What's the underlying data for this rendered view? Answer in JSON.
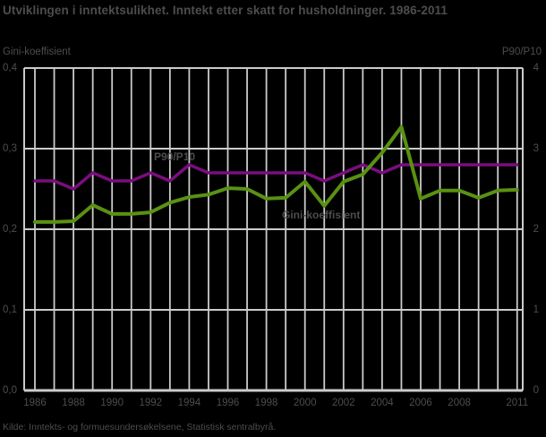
{
  "title": "Utviklingen i inntektsulikhet. Inntekt etter skatt for husholdninger. 1986-2011",
  "source": "Kilde: Inntekts- og formuesundersøkelsene, Statistisk sentralbyrå.",
  "colors": {
    "background": "#000000",
    "grid": "#cbcbcb",
    "axis_line": "#cbcbcb",
    "text": "#4d4d4d",
    "gini_line": "#5a9112",
    "p90_line": "#7b0d7e"
  },
  "left_axis": {
    "title": "Gini-koeffisient",
    "ticks": [
      "0,4",
      "0,3",
      "0,2",
      "0,1",
      "0,0"
    ]
  },
  "right_axis": {
    "title": "P90/P10",
    "ticks": [
      "4",
      "3",
      "2",
      "1",
      "0"
    ]
  },
  "series_labels": {
    "p90": "P90/P10",
    "gini": "Gini-koeffisient"
  },
  "chart_data": {
    "type": "line",
    "x": [
      1986,
      1987,
      1988,
      1989,
      1990,
      1991,
      1992,
      1993,
      1994,
      1995,
      1996,
      1997,
      1998,
      1999,
      2000,
      2001,
      2002,
      2003,
      2004,
      2005,
      2006,
      2007,
      2008,
      2009,
      2010,
      2011
    ],
    "x_tick_labels": [
      "1986",
      "1988",
      "1990",
      "1992",
      "1994",
      "1996",
      "1998",
      "2000",
      "2002",
      "2004",
      "2006",
      "2008",
      "2011"
    ],
    "series": [
      {
        "name": "P90/P10",
        "axis": "right",
        "color": "#7b0d7e",
        "values": [
          2.6,
          2.6,
          2.5,
          2.7,
          2.6,
          2.6,
          2.7,
          2.6,
          2.8,
          2.7,
          2.7,
          2.7,
          2.7,
          2.7,
          2.7,
          2.6,
          2.7,
          2.8,
          2.7,
          2.8,
          2.8,
          2.8,
          2.8,
          2.8,
          2.8,
          2.8
        ]
      },
      {
        "name": "Gini-koeffisient",
        "axis": "left",
        "color": "#5a9112",
        "values": [
          0.209,
          0.209,
          0.21,
          0.23,
          0.219,
          0.219,
          0.221,
          0.233,
          0.24,
          0.243,
          0.251,
          0.25,
          0.238,
          0.239,
          0.259,
          0.229,
          0.259,
          0.268,
          0.295,
          0.327,
          0.238,
          0.248,
          0.248,
          0.239,
          0.248,
          0.249
        ]
      }
    ],
    "left_ylim": [
      0.0,
      0.4
    ],
    "right_ylim": [
      0,
      4
    ],
    "grid": true,
    "legend": "inline-labels"
  }
}
